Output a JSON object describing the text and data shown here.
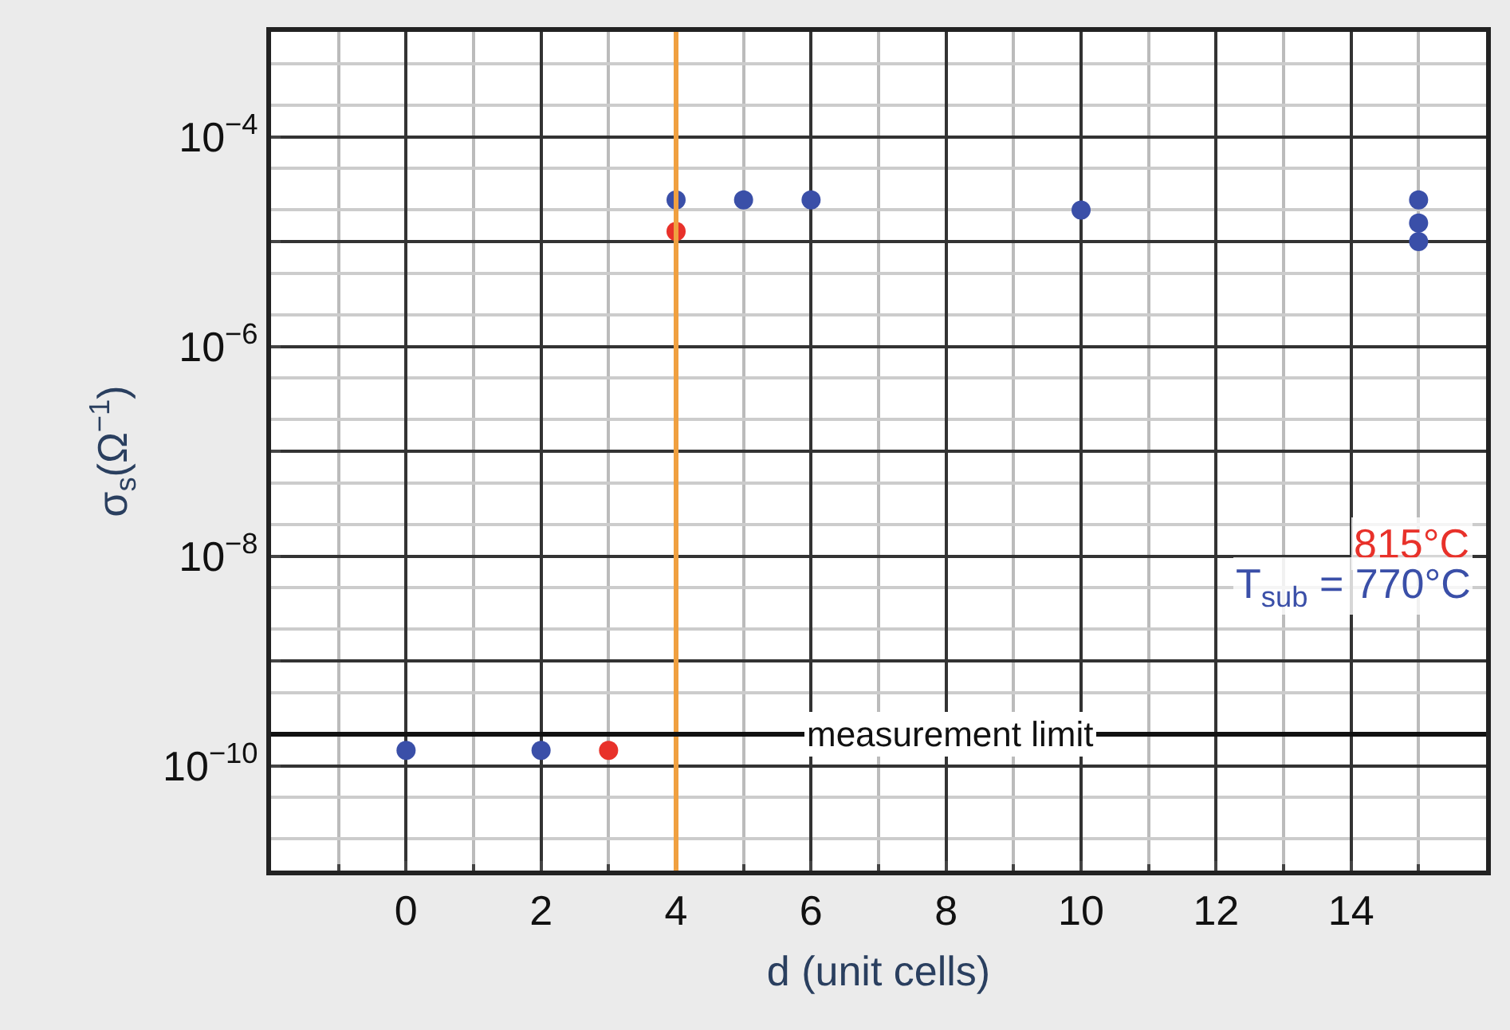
{
  "chart_data": {
    "type": "scatter",
    "xlabel": "d (unit cells)",
    "ylabel": "σ$_{s}$(Ω$^{−1}$)",
    "series": [
      {
        "name": "815°C",
        "color": "#e8312a",
        "x": [
          3,
          4
        ],
        "values": [
          1.4e-10,
          1.25e-05
        ]
      },
      {
        "name": "T$_{sub}$ = 770°C",
        "color": "#3a4fa8",
        "x": [
          0,
          2,
          4,
          5,
          6,
          10,
          15,
          15,
          15
        ],
        "values": [
          1.4e-10,
          1.4e-10,
          2.5e-05,
          2.5e-05,
          2.5e-05,
          2e-05,
          2.5e-05,
          1.5e-05,
          1e-05
        ]
      }
    ],
    "log": "y",
    "marker": "circle",
    "grid": true,
    "legend": false,
    "xlim": [
      -2,
      16
    ],
    "xticks": [
      0,
      2,
      4,
      6,
      8,
      10,
      12,
      14
    ],
    "ylim": [
      1e-11,
      0.001
    ],
    "yticks": [
      {
        "value": 1e-10,
        "label": "10$^{−10}$"
      },
      {
        "value": 1e-09,
        "label": null
      },
      {
        "value": 1e-08,
        "label": "10$^{−8}$"
      },
      {
        "value": 1e-07,
        "label": null
      },
      {
        "value": 1e-06,
        "label": "10$^{−6}$"
      },
      {
        "value": 1e-05,
        "label": null
      },
      {
        "value": 0.0001,
        "label": "10$^{−4}$"
      }
    ],
    "ref_lines": [
      {
        "axis": "x",
        "value": 4,
        "label": null,
        "color": "#f0a040"
      },
      {
        "axis": "y",
        "value": 2e-10,
        "label": "measurement limit",
        "color": "#111111"
      }
    ]
  }
}
